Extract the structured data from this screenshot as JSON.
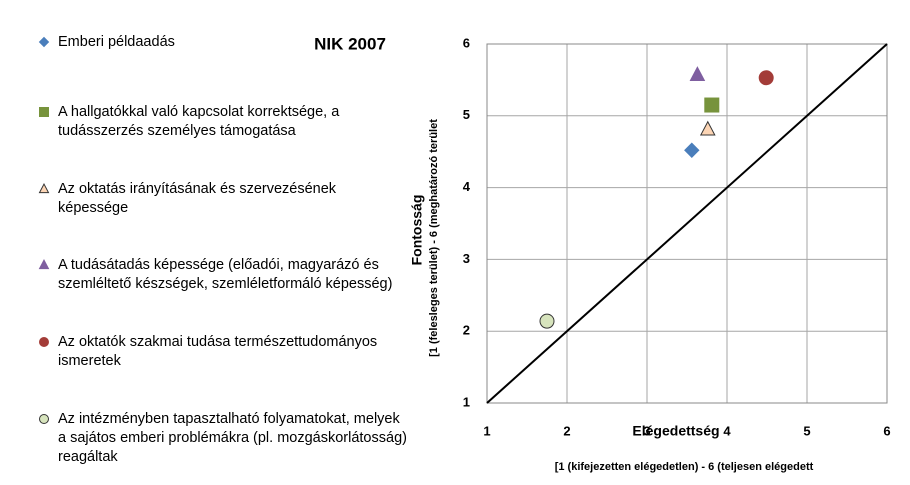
{
  "chart_data": {
    "type": "scatter",
    "title": "NIK 2007",
    "x_label": "Elégedettség",
    "x_sublabel": "[1 (kifejezetten elégedetlen) - 6 (teljesen elégedett",
    "y_label": "Fontosság",
    "y_sublabel": "[1 (felesleges terület) - 6 (meghatározó terület",
    "xlim": [
      1,
      6
    ],
    "xticks": [
      1,
      2,
      3,
      4,
      5,
      6
    ],
    "ylim": [
      1,
      6
    ],
    "yticks": [
      1,
      2,
      3,
      4,
      5,
      6
    ],
    "grid": true,
    "series": [
      {
        "name": "Emberi példaadás",
        "color": "#4a7ebb",
        "marker": "diamond",
        "x": [
          3.56
        ],
        "values": [
          4.52
        ]
      },
      {
        "name": "A hallgatókkal való kapcsolat korrektsége, a tudásszerzés személyes támogatása",
        "color": "#77933c",
        "marker": "square",
        "x": [
          3.81
        ],
        "values": [
          5.15
        ]
      },
      {
        "name": "Az oktatás irányításának és szervezésének képessége",
        "color": "#fcd5b5",
        "marker": "triangle",
        "x": [
          3.76
        ],
        "values": [
          4.81
        ]
      },
      {
        "name": "A tudásátadás képessége (előadói, magyarázó és szemléltető készségek, szemléletformáló képesség)",
        "color": "#7f5fa0",
        "marker": "triangle",
        "x": [
          3.63
        ],
        "values": [
          5.57
        ]
      },
      {
        "name": "Az oktatók szakmai tudása természettudományos ismeretek",
        "color": "#a33c38",
        "marker": "circle",
        "x": [
          4.49
        ],
        "values": [
          5.53
        ]
      },
      {
        "name": "Az intézményben tapasztalható folyamatokat, melyek a sajátos emberi problémákra (pl. mozgáskorlátosság) reagáltak",
        "color": "#d7e4bd",
        "marker": "circle",
        "x": [
          1.75
        ],
        "values": [
          2.14
        ]
      }
    ]
  }
}
